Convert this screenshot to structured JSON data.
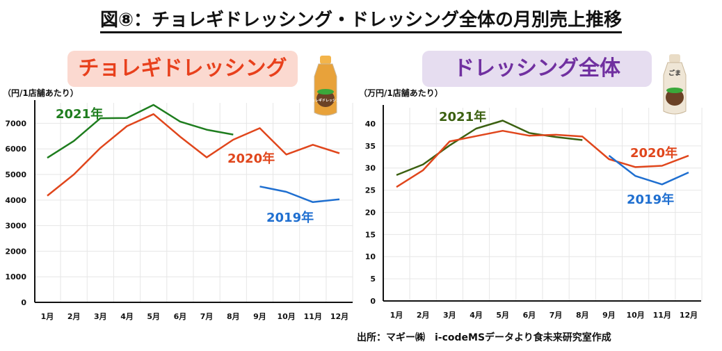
{
  "title": "図⑧：チョレギドレッシング・ドレッシング全体の月別売上推移",
  "source": "出所：マギー㈱　i-codeMSデータより食未来研究室作成",
  "chart_data": [
    {
      "type": "line",
      "title": "チョレギドレッシング",
      "ylabel": "（円/1店舗あたり）",
      "categories": [
        "1月",
        "2月",
        "3月",
        "4月",
        "5月",
        "6月",
        "7月",
        "8月",
        "9月",
        "10月",
        "11月",
        "12月"
      ],
      "yticks": [
        0,
        1000,
        2000,
        3000,
        4000,
        5000,
        6000,
        7000
      ],
      "ylim": [
        0,
        7800
      ],
      "grid": true,
      "bottle_label": "チョレギドレッシング",
      "series": [
        {
          "name": "2021年",
          "color": "#1e7d1e",
          "values": [
            5650,
            6310,
            7200,
            7210,
            7720,
            7070,
            6750,
            6560,
            null,
            null,
            null,
            null
          ]
        },
        {
          "name": "2020年",
          "color": "#e0461c",
          "values": [
            4170,
            5000,
            6040,
            6890,
            7360,
            6480,
            5670,
            6360,
            6810,
            5780,
            6160,
            5830
          ]
        },
        {
          "name": "2019年",
          "color": "#1f6fd0",
          "values": [
            null,
            null,
            null,
            null,
            null,
            null,
            null,
            null,
            4530,
            4320,
            3920,
            4030
          ]
        }
      ]
    },
    {
      "type": "line",
      "title": "ドレッシング全体",
      "ylabel": "（万円/1店舗あたり）",
      "categories": [
        "1月",
        "2月",
        "3月",
        "4月",
        "5月",
        "6月",
        "7月",
        "8月",
        "9月",
        "10月",
        "11月",
        "12月"
      ],
      "yticks": [
        0,
        5,
        10,
        15,
        20,
        25,
        30,
        35,
        40
      ],
      "ylim": [
        0,
        43.6
      ],
      "grid": true,
      "bottle_label": "ごま",
      "series": [
        {
          "name": "2021年",
          "color": "#3b6010",
          "values": [
            28.4,
            30.8,
            35.1,
            38.9,
            40.7,
            37.9,
            37.0,
            36.3,
            null,
            null,
            null,
            null
          ]
        },
        {
          "name": "2020年",
          "color": "#e0461c",
          "values": [
            25.7,
            29.5,
            36.0,
            37.2,
            38.4,
            37.3,
            37.5,
            37.1,
            32.0,
            30.2,
            30.5,
            32.8
          ]
        },
        {
          "name": "2019年",
          "color": "#1f6fd0",
          "values": [
            null,
            null,
            null,
            null,
            null,
            null,
            null,
            null,
            32.8,
            28.2,
            26.3,
            29.0
          ]
        }
      ]
    }
  ]
}
